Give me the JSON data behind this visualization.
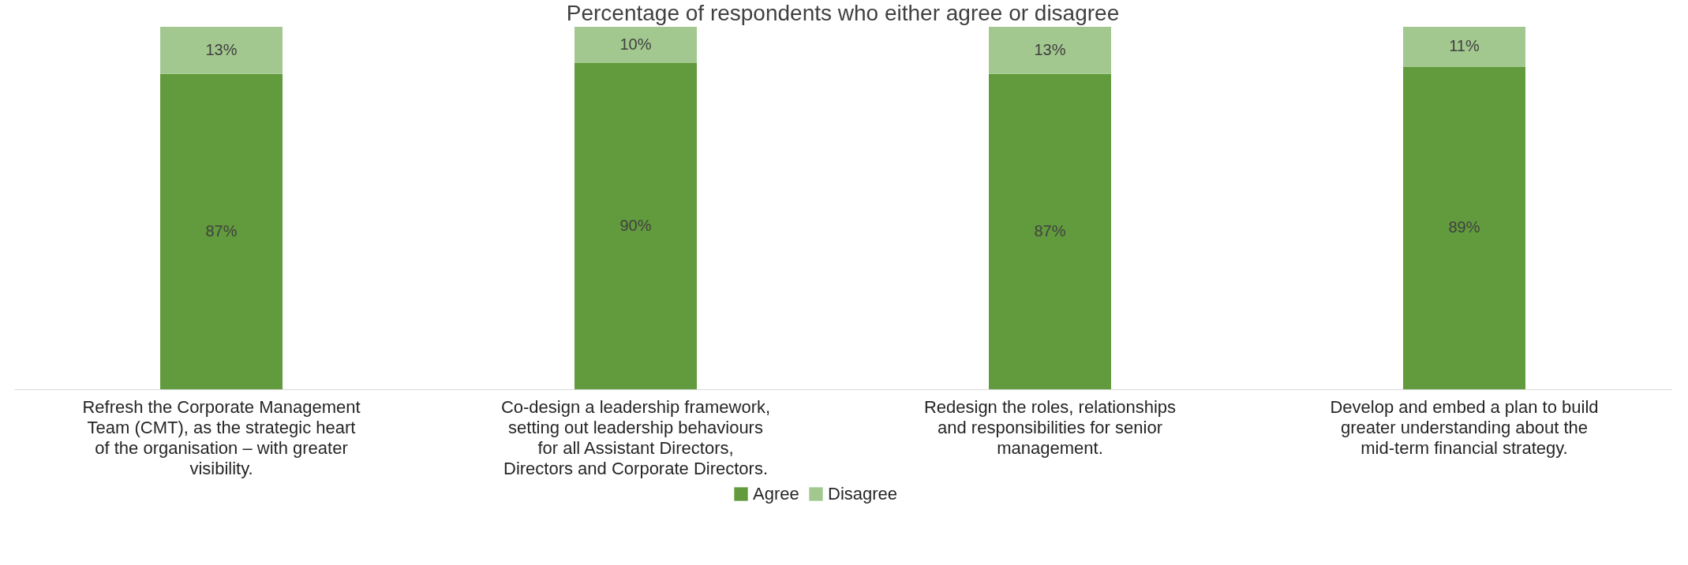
{
  "chart_data": {
    "type": "bar",
    "title": "Percentage of respondents who either agree or disagree",
    "stacked": true,
    "legend": "bottom",
    "grid": false,
    "categories": [
      "Refresh the Corporate Management Team (CMT), as the strategic heart of the organisation – with greater visibility.",
      "Co-design a leadership framework, setting out leadership behaviours for all Assistant Directors, Directors and Corporate Directors.",
      "Redesign the roles, relationships and responsibilities for senior management.",
      "Develop and embed a plan to build greater understanding about the mid-term financial strategy."
    ],
    "series": [
      {
        "name": "Agree",
        "color": "#629b3d",
        "values": [
          87,
          90,
          87,
          89
        ],
        "value_labels": [
          "87%",
          "90%",
          "87%",
          "89%"
        ]
      },
      {
        "name": "Disagree",
        "color": "#a3c88f",
        "values": [
          13,
          10,
          13,
          11
        ],
        "value_labels": [
          "13%",
          "10%",
          "13%",
          "11%"
        ]
      }
    ]
  }
}
